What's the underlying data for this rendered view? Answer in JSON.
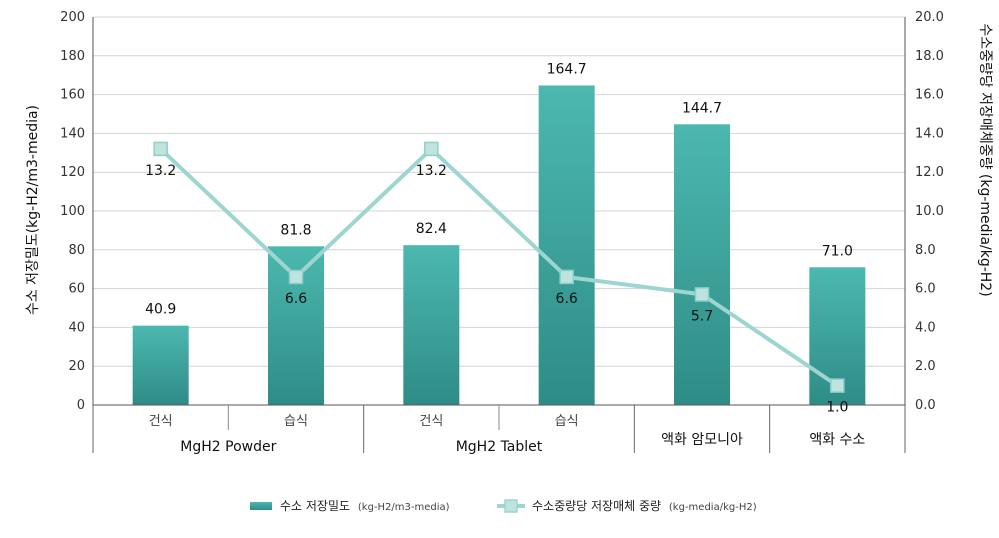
{
  "chart_data": {
    "type": "bar+line",
    "categories": [
      "건식",
      "습식",
      "건식",
      "습식",
      "",
      ""
    ],
    "groups": [
      {
        "label": "MgH2  Powder",
        "span": 2
      },
      {
        "label": "MgH2  Tablet",
        "span": 2
      },
      {
        "label": "액화  암모니아",
        "span": 1
      },
      {
        "label": "액화  수소",
        "span": 1
      }
    ],
    "bar_series": {
      "name": "수소 저장밀도",
      "unit": "(kg-H2/m3-media)",
      "values": [
        40.9,
        81.8,
        82.4,
        164.7,
        144.7,
        71.0
      ],
      "labels": [
        "40.9",
        "81.8",
        "82.4",
        "164.7",
        "144.7",
        "71.0"
      ],
      "color": "#47B0A8"
    },
    "line_series": {
      "name": "수소중량당 저장매체 중량",
      "unit": "(kg-media/kg-H2)",
      "values": [
        13.2,
        6.6,
        13.2,
        6.6,
        5.7,
        1.0
      ],
      "labels": [
        "13.2",
        "6.6",
        "13.2",
        "6.6",
        "5.7",
        "1.0"
      ],
      "color": "#9DD5D0"
    },
    "y_left": {
      "label": "수소 저장밀도(kg-H2/m3-media)",
      "range": [
        0,
        200
      ],
      "ticks": [
        "0",
        "20",
        "40",
        "60",
        "80",
        "100",
        "120",
        "140",
        "160",
        "180",
        "200"
      ]
    },
    "y_right": {
      "label": "수소중량당 저장매체중량 (kg-media/kg-H2)",
      "range": [
        0,
        20
      ],
      "ticks": [
        "0.0",
        "2.0",
        "4.0",
        "6.0",
        "8.0",
        "10.0",
        "12.0",
        "14.0",
        "16.0",
        "18.0",
        "20.0"
      ]
    },
    "grid": true,
    "legend_position": "bottom"
  }
}
